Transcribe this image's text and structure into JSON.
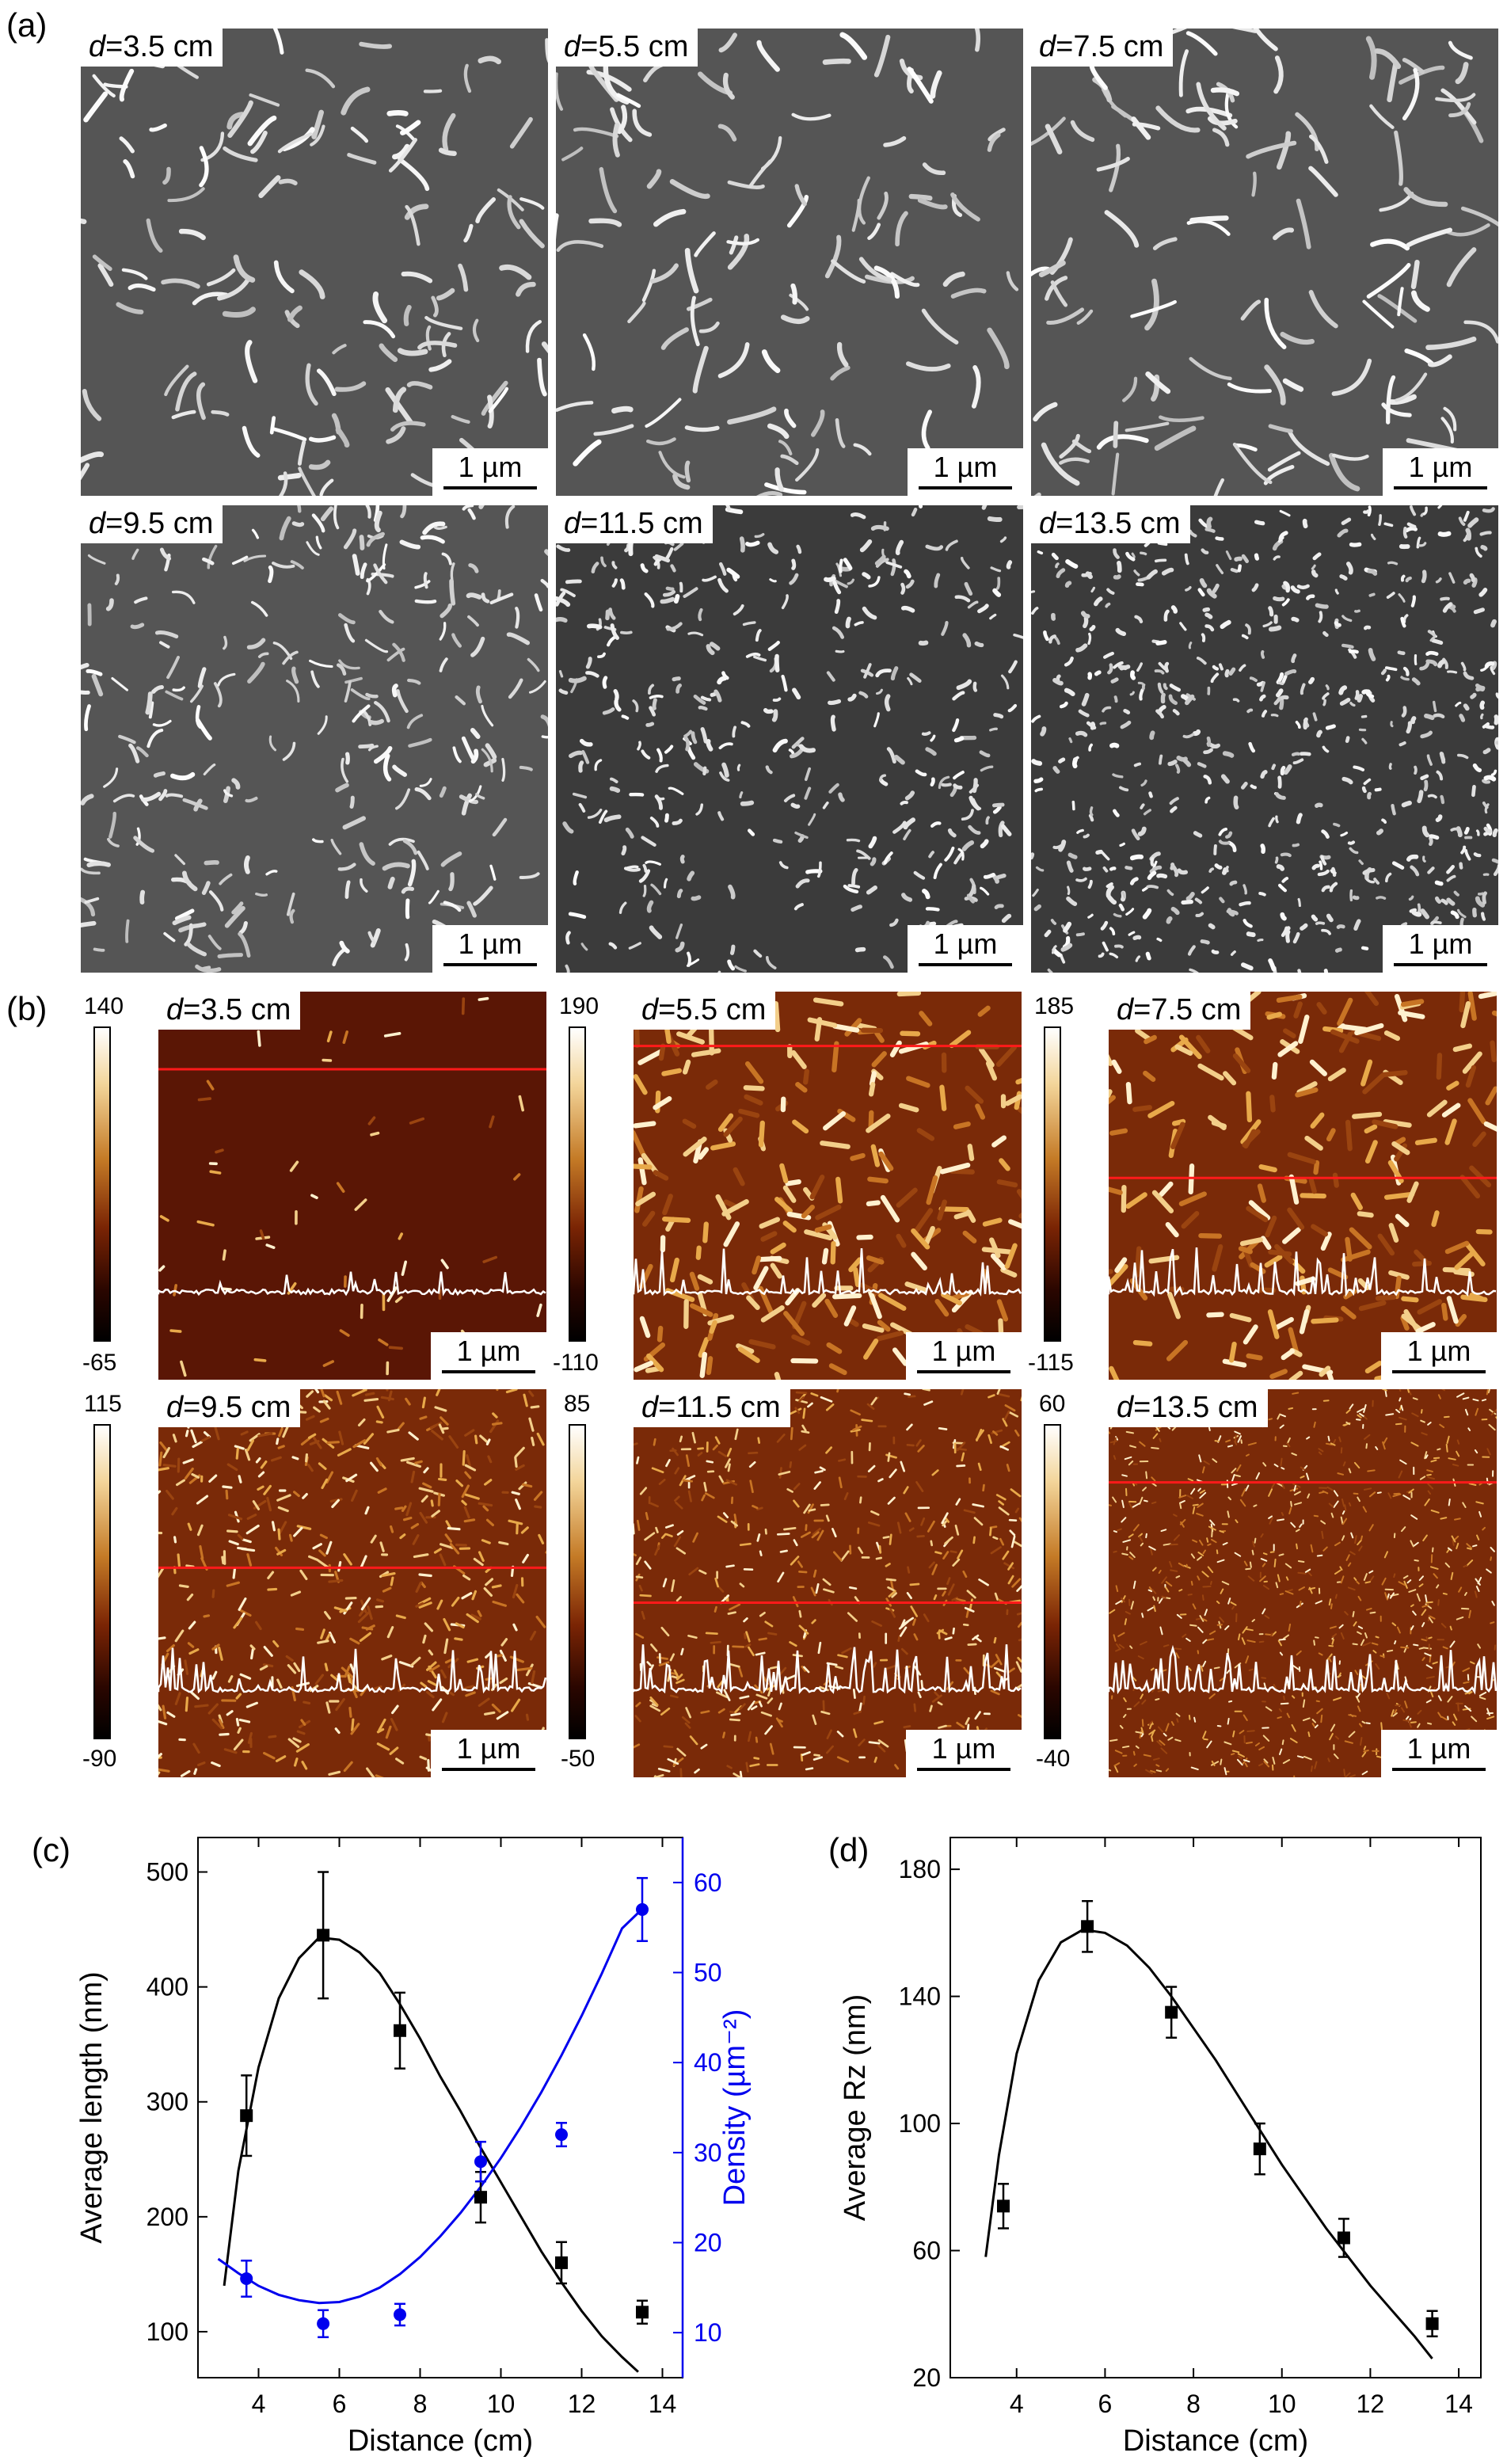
{
  "panel_labels": {
    "a": "(a)",
    "b": "(b)",
    "c": "(c)",
    "d": "(d)"
  },
  "scale_bar": "1 µm",
  "sem_tiles": [
    {
      "label": "d=3.5 cm",
      "var": "d",
      "rest": "=3.5 cm"
    },
    {
      "label": "d=5.5 cm",
      "var": "d",
      "rest": "=5.5 cm"
    },
    {
      "label": "d=7.5 cm",
      "var": "d",
      "rest": "=7.5 cm"
    },
    {
      "label": "d=9.5 cm",
      "var": "d",
      "rest": "=9.5 cm"
    },
    {
      "label": "d=11.5 cm",
      "var": "d",
      "rest": "=11.5 cm"
    },
    {
      "label": "d=13.5 cm",
      "var": "d",
      "rest": "=13.5 cm"
    }
  ],
  "afm_tiles": [
    {
      "label": "d=3.5 cm",
      "var": "d",
      "rest": "=3.5 cm",
      "cbar_max": "140",
      "cbar_min": "-65"
    },
    {
      "label": "d=5.5 cm",
      "var": "d",
      "rest": "=5.5 cm",
      "cbar_max": "190",
      "cbar_min": "-110"
    },
    {
      "label": "d=7.5 cm",
      "var": "d",
      "rest": "=7.5 cm",
      "cbar_max": "185",
      "cbar_min": "-115"
    },
    {
      "label": "d=9.5 cm",
      "var": "d",
      "rest": "=9.5 cm",
      "cbar_max": "115",
      "cbar_min": "-90"
    },
    {
      "label": "d=11.5 cm",
      "var": "d",
      "rest": "=11.5 cm",
      "cbar_max": "85",
      "cbar_min": "-50"
    },
    {
      "label": "d=13.5 cm",
      "var": "d",
      "rest": "=13.5 cm",
      "cbar_max": "60",
      "cbar_min": "-40"
    }
  ],
  "colors": {
    "left_series": "#000000",
    "right_series": "#0000ee",
    "afm_line": "#ff1a1a",
    "afm_profile": "#ffffff"
  },
  "chart_data": [
    {
      "type": "scatter",
      "xlabel": "Distance (cm)",
      "ylabel": "Average length (nm)",
      "y2label": "Density (µm⁻²)",
      "xlim": [
        2.5,
        14.5
      ],
      "ylim": [
        60,
        530
      ],
      "y2lim": [
        5,
        65
      ],
      "xticks": [
        "4",
        "6",
        "8",
        "10",
        "12",
        "14"
      ],
      "yticks": [
        "100",
        "200",
        "300",
        "400",
        "500"
      ],
      "y2ticks": [
        "10",
        "20",
        "30",
        "40",
        "50",
        "60"
      ],
      "series": [
        {
          "axis": "left",
          "x": [
            3.7,
            5.6,
            7.5,
            9.5,
            11.5,
            13.5
          ],
          "y": [
            288,
            445,
            362,
            217,
            160,
            117
          ],
          "err": [
            35,
            55,
            33,
            22,
            18,
            10
          ]
        },
        {
          "axis": "right",
          "x": [
            3.7,
            5.6,
            7.5,
            9.5,
            11.5,
            13.5
          ],
          "y": [
            16,
            11,
            12,
            29,
            32,
            57
          ],
          "err": [
            2,
            1.5,
            1.2,
            2.2,
            1.3,
            3.5
          ]
        }
      ],
      "fits": [
        {
          "axis": "left",
          "x": [
            3.15,
            3.5,
            4.0,
            4.5,
            5.0,
            5.5,
            6.0,
            6.5,
            7.0,
            7.5,
            8.0,
            8.5,
            9.0,
            9.5,
            10.0,
            10.5,
            11.0,
            11.5,
            12.0,
            12.5,
            13.0,
            13.4
          ],
          "y": [
            140,
            240,
            330,
            390,
            425,
            443,
            441,
            430,
            412,
            385,
            355,
            322,
            292,
            260,
            230,
            200,
            170,
            143,
            118,
            96,
            78,
            65
          ]
        },
        {
          "axis": "right",
          "x": [
            3.0,
            3.5,
            4.0,
            4.5,
            5.0,
            5.5,
            6.0,
            6.5,
            7.0,
            7.5,
            8.0,
            8.5,
            9.0,
            9.5,
            10.0,
            10.5,
            11.0,
            11.5,
            12.0,
            12.5,
            13.0,
            13.6
          ],
          "y": [
            18.2,
            16.6,
            15.2,
            14.2,
            13.6,
            13.3,
            13.4,
            14.0,
            15.0,
            16.5,
            18.4,
            20.7,
            23.3,
            26.2,
            29.4,
            32.9,
            36.7,
            40.8,
            45.2,
            49.9,
            54.9,
            57.5
          ]
        }
      ]
    },
    {
      "type": "scatter",
      "xlabel": "Distance (cm)",
      "ylabel": "Average Rz (nm)",
      "xlim": [
        2.5,
        14.5
      ],
      "ylim": [
        20,
        190
      ],
      "xticks": [
        "4",
        "6",
        "8",
        "10",
        "12",
        "14"
      ],
      "yticks": [
        "20",
        "60",
        "100",
        "140",
        "180"
      ],
      "series": [
        {
          "x": [
            3.7,
            5.6,
            7.5,
            9.5,
            11.4,
            13.4
          ],
          "y": [
            74,
            162,
            135,
            92,
            64,
            37
          ],
          "err": [
            7,
            8,
            8,
            8,
            6,
            4
          ]
        }
      ],
      "fit": {
        "x": [
          3.3,
          3.6,
          4.0,
          4.5,
          5.0,
          5.5,
          6.0,
          6.5,
          7.0,
          7.5,
          8.0,
          8.5,
          9.0,
          9.5,
          10.0,
          10.5,
          11.0,
          11.5,
          12.0,
          12.5,
          13.0,
          13.4
        ],
        "y": [
          58,
          90,
          122,
          145,
          157,
          161,
          160,
          156,
          149,
          140,
          130,
          120,
          109,
          98,
          87,
          77,
          67,
          58,
          49,
          41,
          33,
          26
        ]
      }
    }
  ]
}
